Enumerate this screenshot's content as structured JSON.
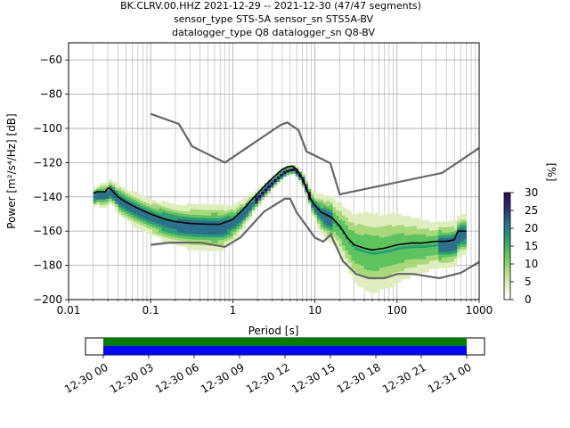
{
  "chart_data": {
    "type": "heatmap",
    "title_lines": [
      "BK.CLRV.00.HHZ   2021-12-29 -- 2021-12-30  (47/47 segments)",
      "sensor_type STS-5A sensor_sn STS5A-BV",
      "datalogger_type Q8 datalogger_sn Q8-BV"
    ],
    "xlabel": "Period [s]",
    "ylabel": "Power [m²/s⁴/Hz] [dB]",
    "x_scale": "log",
    "xlim": [
      0.01,
      1000
    ],
    "ylim": [
      -200,
      -50
    ],
    "x_ticks": [
      {
        "v": 0.01,
        "label": "0.01"
      },
      {
        "v": 0.1,
        "label": "0.1"
      },
      {
        "v": 1,
        "label": "1"
      },
      {
        "v": 10,
        "label": "10"
      },
      {
        "v": 100,
        "label": "100"
      },
      {
        "v": 1000,
        "label": "1000"
      }
    ],
    "y_ticks": [
      {
        "v": -60,
        "label": "−60"
      },
      {
        "v": -80,
        "label": "−80"
      },
      {
        "v": -100,
        "label": "−100"
      },
      {
        "v": -120,
        "label": "−120"
      },
      {
        "v": -140,
        "label": "−140"
      },
      {
        "v": -160,
        "label": "−160"
      },
      {
        "v": -180,
        "label": "−180"
      },
      {
        "v": -200,
        "label": "−200"
      }
    ],
    "grid": true,
    "colorbar": {
      "label": "[%]",
      "min": 0,
      "max": 30,
      "ticks": [
        {
          "v": 0,
          "label": "0"
        },
        {
          "v": 5,
          "label": "5"
        },
        {
          "v": 10,
          "label": "10"
        },
        {
          "v": 15,
          "label": "15"
        },
        {
          "v": 20,
          "label": "20"
        },
        {
          "v": 25,
          "label": "25"
        },
        {
          "v": 30,
          "label": "30"
        }
      ],
      "colors": [
        "#ffffff",
        "#dfeebf",
        "#a9d87a",
        "#5cc35f",
        "#2a9d74",
        "#2b6f8c",
        "#2e2e6e",
        "#2a0a4a"
      ]
    },
    "noise_model_high": [
      [
        0.1,
        -91.5
      ],
      [
        0.22,
        -97.4
      ],
      [
        0.32,
        -110.5
      ],
      [
        0.8,
        -120
      ],
      [
        3.8,
        -98
      ],
      [
        4.6,
        -96.5
      ],
      [
        6.3,
        -101
      ],
      [
        7.9,
        -113.5
      ],
      [
        15.4,
        -120.3
      ],
      [
        20,
        -138.5
      ],
      [
        354.8,
        -126
      ],
      [
        1000,
        -111.4
      ]
    ],
    "noise_model_low": [
      [
        0.1,
        -168
      ],
      [
        0.17,
        -166.7
      ],
      [
        0.4,
        -166.7
      ],
      [
        0.8,
        -169.2
      ],
      [
        1.24,
        -163.7
      ],
      [
        2.4,
        -148.6
      ],
      [
        4.3,
        -141.1
      ],
      [
        5.0,
        -141.1
      ],
      [
        6.0,
        -149
      ],
      [
        10,
        -163.8
      ],
      [
        12.6,
        -166.2
      ],
      [
        15.6,
        -162.1
      ],
      [
        21.9,
        -177.5
      ],
      [
        31.6,
        -185
      ],
      [
        45,
        -187.5
      ],
      [
        70,
        -187.5
      ],
      [
        101,
        -185
      ],
      [
        154,
        -185
      ],
      [
        328,
        -187.5
      ],
      [
        600,
        -184.4
      ],
      [
        1000,
        -178
      ]
    ],
    "mode_curve": [
      [
        0.02,
        -138
      ],
      [
        0.022,
        -137
      ],
      [
        0.026,
        -137
      ],
      [
        0.028,
        -137
      ],
      [
        0.03,
        -135
      ],
      [
        0.032,
        -135
      ],
      [
        0.035,
        -137
      ],
      [
        0.04,
        -140
      ],
      [
        0.05,
        -143
      ],
      [
        0.06,
        -145
      ],
      [
        0.08,
        -148
      ],
      [
        0.1,
        -150
      ],
      [
        0.15,
        -153
      ],
      [
        0.2,
        -154.5
      ],
      [
        0.3,
        -155.5
      ],
      [
        0.5,
        -156
      ],
      [
        0.7,
        -156
      ],
      [
        0.9,
        -154
      ],
      [
        1.0,
        -153
      ],
      [
        1.3,
        -148
      ],
      [
        1.6,
        -143
      ],
      [
        2.0,
        -138
      ],
      [
        2.5,
        -133
      ],
      [
        3.2,
        -128
      ],
      [
        4.0,
        -124
      ],
      [
        4.6,
        -122.5
      ],
      [
        5.3,
        -122
      ],
      [
        6.0,
        -124
      ],
      [
        7.0,
        -129
      ],
      [
        8.0,
        -136
      ],
      [
        9.0,
        -142
      ],
      [
        10,
        -145
      ],
      [
        12,
        -149
      ],
      [
        16,
        -152
      ],
      [
        20,
        -157
      ],
      [
        25,
        -164
      ],
      [
        30,
        -168
      ],
      [
        40,
        -170
      ],
      [
        50,
        -171
      ],
      [
        70,
        -170
      ],
      [
        100,
        -168
      ],
      [
        150,
        -167
      ],
      [
        200,
        -167
      ],
      [
        300,
        -166
      ],
      [
        400,
        -166
      ],
      [
        500,
        -165
      ],
      [
        550,
        -160
      ],
      [
        700,
        -160
      ]
    ],
    "density_spread": [
      [
        0.02,
        5
      ],
      [
        0.05,
        8
      ],
      [
        0.1,
        9
      ],
      [
        0.3,
        11
      ],
      [
        0.6,
        12
      ],
      [
        1,
        9
      ],
      [
        2,
        4
      ],
      [
        5,
        2
      ],
      [
        8,
        4
      ],
      [
        12,
        10
      ],
      [
        20,
        14
      ],
      [
        40,
        22
      ],
      [
        80,
        20
      ],
      [
        150,
        16
      ],
      [
        300,
        12
      ],
      [
        700,
        10
      ]
    ],
    "segment_bar": {
      "tick_labels": [
        "12-30 00",
        "12-30 03",
        "12-30 06",
        "12-30 09",
        "12-30 12",
        "12-30 15",
        "12-30 18",
        "12-30 21",
        "12-31 00"
      ],
      "colors": [
        "#008000",
        "#0000ff"
      ]
    }
  }
}
